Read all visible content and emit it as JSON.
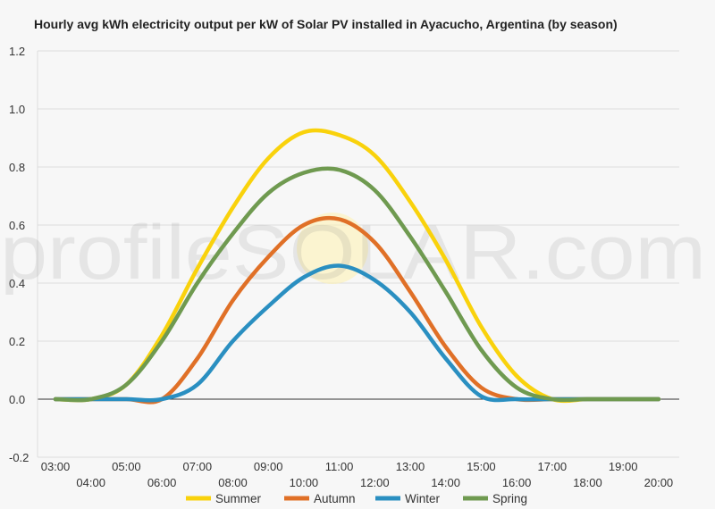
{
  "chart_data": {
    "type": "line",
    "title": "Hourly avg kWh electricity output per kW of Solar PV installed in Ayacucho, Argentina (by season)",
    "xlabel": "",
    "ylabel": "",
    "x": [
      "03:00",
      "04:00",
      "05:00",
      "06:00",
      "07:00",
      "08:00",
      "09:00",
      "10:00",
      "11:00",
      "12:00",
      "13:00",
      "14:00",
      "15:00",
      "16:00",
      "17:00",
      "18:00",
      "19:00",
      "20:00"
    ],
    "ylim": [
      -0.2,
      1.2
    ],
    "yticks": [
      "1.2",
      "1.0",
      "0.8",
      "0.6",
      "0.4",
      "0.2",
      "0.0",
      "-0.2"
    ],
    "grid": true,
    "legend_position": "bottom",
    "watermark": "profileSOLAR.com",
    "series": [
      {
        "name": "Summer",
        "color": "#f9d20c",
        "values": [
          0.0,
          0.0,
          0.05,
          0.22,
          0.45,
          0.66,
          0.83,
          0.92,
          0.91,
          0.84,
          0.68,
          0.48,
          0.25,
          0.08,
          0.0,
          0.0,
          0.0,
          0.0
        ]
      },
      {
        "name": "Autumn",
        "color": "#e07027",
        "values": [
          0.0,
          0.0,
          0.0,
          0.0,
          0.14,
          0.34,
          0.49,
          0.6,
          0.62,
          0.54,
          0.37,
          0.18,
          0.04,
          0.0,
          0.0,
          0.0,
          0.0,
          0.0
        ]
      },
      {
        "name": "Winter",
        "color": "#2a8fc1",
        "values": [
          0.0,
          0.0,
          0.0,
          0.0,
          0.05,
          0.2,
          0.32,
          0.42,
          0.46,
          0.41,
          0.3,
          0.14,
          0.01,
          0.0,
          0.0,
          0.0,
          0.0,
          0.0
        ]
      },
      {
        "name": "Spring",
        "color": "#6f9a50",
        "values": [
          0.0,
          0.0,
          0.05,
          0.2,
          0.4,
          0.57,
          0.71,
          0.78,
          0.79,
          0.72,
          0.56,
          0.37,
          0.17,
          0.04,
          0.0,
          0.0,
          0.0,
          0.0
        ]
      }
    ]
  }
}
